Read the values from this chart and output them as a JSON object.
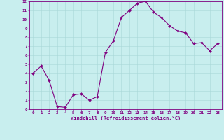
{
  "x": [
    0,
    1,
    2,
    3,
    4,
    5,
    6,
    7,
    8,
    9,
    10,
    11,
    12,
    13,
    14,
    15,
    16,
    17,
    18,
    19,
    20,
    21,
    22,
    23
  ],
  "y": [
    4.0,
    4.8,
    3.2,
    0.3,
    0.2,
    1.6,
    1.7,
    1.0,
    1.4,
    6.3,
    7.6,
    10.2,
    11.0,
    11.8,
    12.0,
    10.8,
    10.2,
    9.3,
    8.7,
    8.5,
    7.3,
    7.4,
    6.5,
    7.3
  ],
  "line_color": "#800080",
  "marker": "D",
  "marker_size": 2.0,
  "linewidth": 0.8,
  "bg_color": "#C8EEEE",
  "grid_color": "#A8D8D8",
  "xlabel": "Windchill (Refroidissement éolien,°C)",
  "xlim": [
    -0.5,
    23.5
  ],
  "ylim": [
    0,
    12
  ],
  "xticks": [
    0,
    1,
    2,
    3,
    4,
    5,
    6,
    7,
    8,
    9,
    10,
    11,
    12,
    13,
    14,
    15,
    16,
    17,
    18,
    19,
    20,
    21,
    22,
    23
  ],
  "yticks": [
    0,
    1,
    2,
    3,
    4,
    5,
    6,
    7,
    8,
    9,
    10,
    11,
    12
  ],
  "label_color": "#800080",
  "tick_color": "#800080",
  "axis_color": "#800080",
  "tick_fontsize": 4.2,
  "xlabel_fontsize": 5.0
}
